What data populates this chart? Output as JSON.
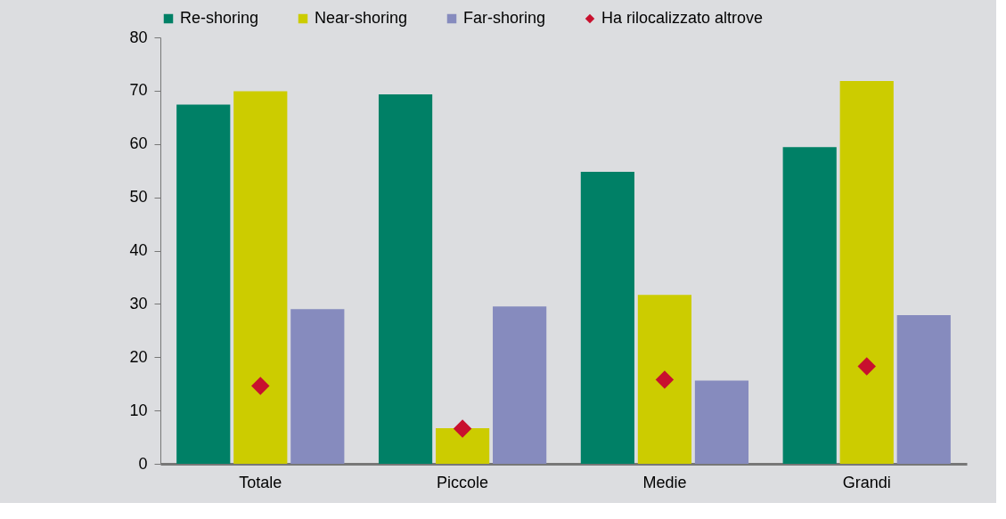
{
  "chart_data": {
    "type": "bar",
    "categories": [
      "Totale",
      "Piccole",
      "Medie",
      "Grandi"
    ],
    "series": [
      {
        "name": "Re-shoring",
        "color": "#008066",
        "values": [
          67.4,
          69.3,
          54.8,
          59.4
        ]
      },
      {
        "name": "Near-shoring",
        "color": "#cccc00",
        "values": [
          69.9,
          6.7,
          31.7,
          71.8
        ]
      },
      {
        "name": "Far-shoring",
        "color": "#868bbe",
        "values": [
          29.0,
          29.5,
          15.6,
          27.9
        ]
      },
      {
        "name": "Ha rilocalizzato altrove",
        "type": "scatter",
        "marker": "diamond",
        "color": "#c8102e",
        "x": [
          "Totale",
          "Piccole",
          "Medie",
          "Grandi"
        ],
        "values": [
          14.6,
          6.6,
          15.8,
          18.3
        ]
      }
    ],
    "ylim": [
      0,
      80
    ],
    "yticks": [
      0,
      10,
      20,
      30,
      40,
      50,
      60,
      70,
      80
    ],
    "legend": "top"
  }
}
